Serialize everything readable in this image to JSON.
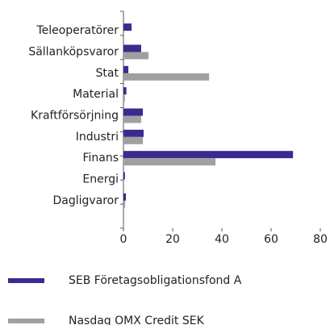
{
  "chart_data": {
    "type": "bar",
    "orientation": "horizontal",
    "categories": [
      "Teleoperatörer",
      "Sällanköpsvaror",
      "Stat",
      "Material",
      "Kraftförsörjning",
      "Industri",
      "Finans",
      "Energi",
      "Dagligvaror"
    ],
    "series": [
      {
        "name": "SEB Företagsobligationsfond A",
        "color": "#3b2a8f",
        "values": [
          3.3,
          7.2,
          2,
          1.2,
          7.9,
          8.2,
          68.9,
          0.6,
          1
        ]
      },
      {
        "name": "Nasdaq OMX Credit SEK",
        "color": "#a0a0a0",
        "values": [
          0,
          10.2,
          34.8,
          0.6,
          7.2,
          7.9,
          37.4,
          0,
          0.7
        ]
      }
    ],
    "xlim": [
      0,
      80
    ],
    "xticks": [
      0,
      20,
      40,
      60,
      80
    ],
    "grid": false,
    "legend": "bottom"
  }
}
